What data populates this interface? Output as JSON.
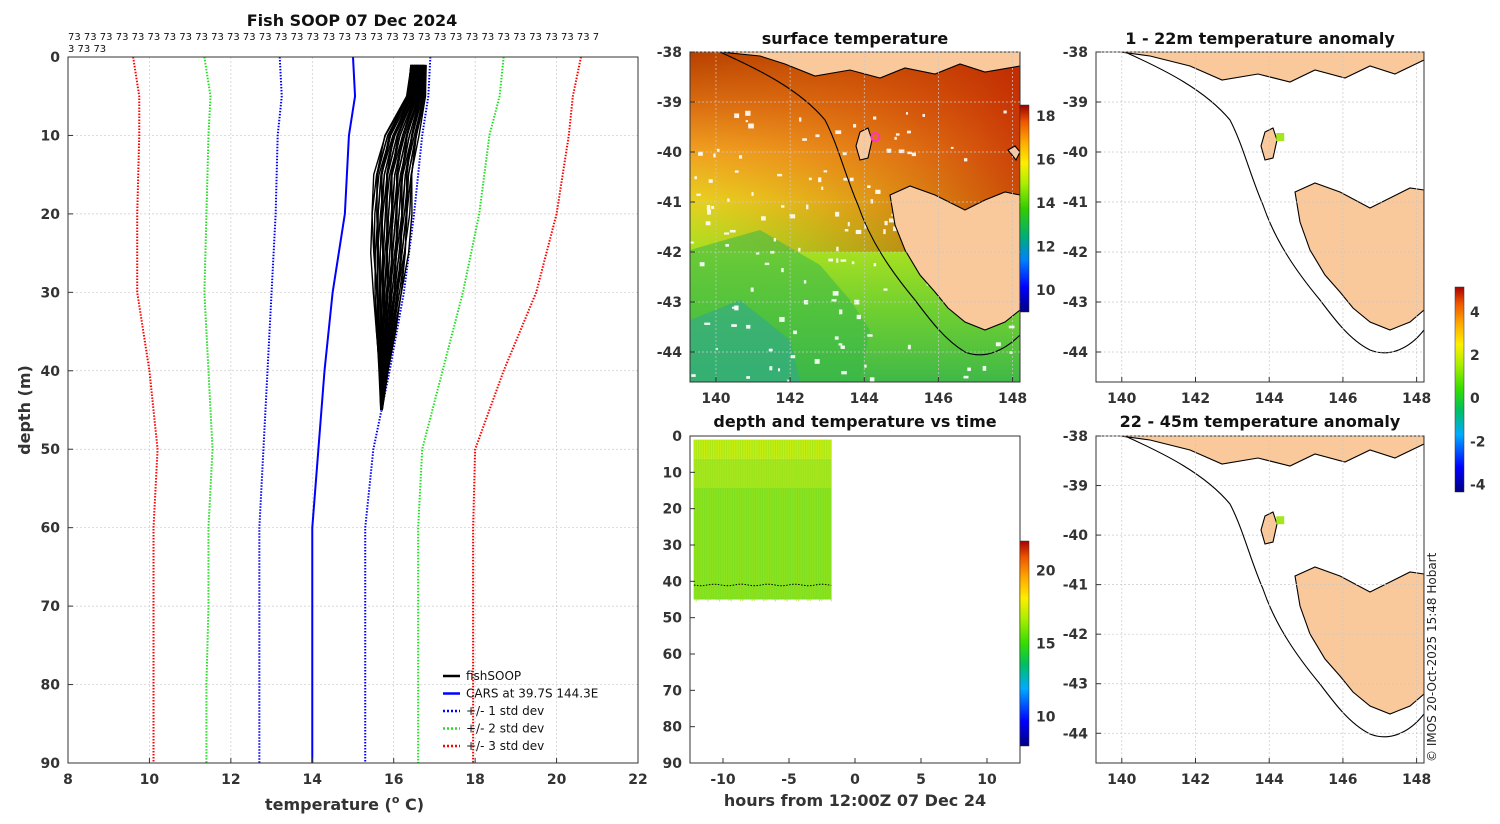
{
  "chart_data": [
    {
      "id": "profile",
      "type": "line",
      "title": "Fish SOOP 07 Dec 2024",
      "top_labels": [
        "73 73 73 73 73 73 73 73 73 73 73 73 73 73 73 73 73 73 73 73 73 73 73 73 73 73 73 73 73 73 73 73 73 7",
        "3 73 73"
      ],
      "xlabel": "temperature (",
      "xlabel_sup": "o",
      "xlabel_unit": " C)",
      "ylabel": "depth (m)",
      "xlim": [
        8,
        22
      ],
      "ylim": [
        0,
        90
      ],
      "xticks": [
        8,
        10,
        12,
        14,
        16,
        18,
        20,
        22
      ],
      "yticks": [
        0,
        10,
        20,
        30,
        40,
        50,
        60,
        70,
        80,
        90
      ],
      "depths": [
        0,
        5,
        10,
        20,
        30,
        40,
        50,
        60,
        70,
        80,
        90
      ],
      "series": [
        {
          "name": "+/- 3 std dev (lower)",
          "color": "#ff0000",
          "style": "dotted",
          "x": [
            9.6,
            9.75,
            9.75,
            9.7,
            9.7,
            10.0,
            10.2,
            10.1,
            10.1,
            10.1,
            10.1
          ]
        },
        {
          "name": "+/- 2 std dev (lower)",
          "color": "#22dd22",
          "style": "dotted",
          "x": [
            11.35,
            11.5,
            11.45,
            11.4,
            11.35,
            11.45,
            11.55,
            11.45,
            11.45,
            11.4,
            11.4
          ]
        },
        {
          "name": "+/- 1 std dev (lower)",
          "color": "#0000ff",
          "style": "dotted",
          "x": [
            13.2,
            13.25,
            13.15,
            13.1,
            13.0,
            12.9,
            12.8,
            12.7,
            12.7,
            12.7,
            12.7
          ]
        },
        {
          "name": "CARS at 39.7S 144.3E",
          "color": "#0000ff",
          "style": "solid",
          "x": [
            15.0,
            15.05,
            14.9,
            14.8,
            14.5,
            14.3,
            14.15,
            14.0,
            14.0,
            14.0,
            14.0
          ]
        },
        {
          "name": "+/- 1 std dev (upper)",
          "color": "#0000ff",
          "style": "dotted",
          "x": [
            16.9,
            16.85,
            16.7,
            16.5,
            16.25,
            15.9,
            15.5,
            15.3,
            15.3,
            15.3,
            15.3
          ]
        },
        {
          "name": "+/- 2 std dev (upper)",
          "color": "#22dd22",
          "style": "dotted",
          "x": [
            18.7,
            18.6,
            18.35,
            18.1,
            17.7,
            17.2,
            16.7,
            16.6,
            16.6,
            16.6,
            16.6
          ]
        },
        {
          "name": "+/- 3 std dev (upper)",
          "color": "#ff0000",
          "style": "dotted",
          "x": [
            20.6,
            20.4,
            20.3,
            20.0,
            19.5,
            18.7,
            18.0,
            17.95,
            17.95,
            17.95,
            17.95
          ]
        }
      ],
      "fishsoop": {
        "depth": [
          1,
          5,
          10,
          15,
          20,
          25,
          30,
          35,
          40,
          45
        ],
        "center": [
          16.6,
          16.55,
          16.2,
          16.0,
          15.95,
          15.9,
          15.85,
          15.8,
          15.75,
          15.7
        ],
        "spread": [
          0.2,
          0.25,
          0.45,
          0.5,
          0.5,
          0.45,
          0.35,
          0.25,
          0.12,
          0.02
        ],
        "color": "#000000"
      },
      "legend": [
        {
          "label": "fishSOOP",
          "color": "#000000",
          "style": "solid"
        },
        {
          "label": "CARS at 39.7S 144.3E",
          "color": "#0000ff",
          "style": "solid"
        },
        {
          "label": "+/- 1 std dev",
          "color": "#0000ff",
          "style": "dotted"
        },
        {
          "label": "+/- 2 std dev",
          "color": "#22dd22",
          "style": "dotted"
        },
        {
          "label": "+/- 3 std dev",
          "color": "#ff0000",
          "style": "dotted"
        }
      ]
    },
    {
      "id": "sst_map",
      "type": "heatmap",
      "title": "surface temperature",
      "xlim": [
        139.3,
        148.2
      ],
      "ylim": [
        -44.6,
        -38
      ],
      "xticks": [
        140,
        142,
        144,
        146,
        148
      ],
      "yticks": [
        -38,
        -39,
        -40,
        -41,
        -42,
        -43,
        -44
      ],
      "colorbar": {
        "min": 9,
        "max": 18.5,
        "ticks": [
          10,
          12,
          14,
          16,
          18
        ]
      },
      "marker": {
        "lon": 144.3,
        "lat": -39.7,
        "color": "#ff33cc"
      }
    },
    {
      "id": "depth_time",
      "type": "scatter",
      "title": "depth and temperature vs time",
      "xlabel": "hours from 12:00Z 07 Dec 24",
      "xlim": [
        -12.5,
        12.5
      ],
      "ylim": [
        0,
        90
      ],
      "xticks": [
        -10,
        -5,
        0,
        5,
        10
      ],
      "yticks": [
        0,
        10,
        20,
        30,
        40,
        50,
        60,
        70,
        80,
        90
      ],
      "time_range": [
        -12.2,
        -1.8
      ],
      "depth_range": [
        1,
        45
      ],
      "bottom_depth": 41,
      "colorbar": {
        "min": 8,
        "max": 22,
        "ticks": [
          10,
          15,
          20
        ]
      }
    },
    {
      "id": "anom_1_22",
      "type": "heatmap",
      "title": "1 - 22m temperature anomaly",
      "xlim": [
        139.3,
        148.2
      ],
      "ylim": [
        -44.6,
        -38
      ],
      "xticks": [
        140,
        142,
        144,
        146,
        148
      ],
      "yticks": [
        -38,
        -39,
        -40,
        -41,
        -42,
        -43,
        -44
      ],
      "marker": {
        "lon": 144.3,
        "lat": -39.7,
        "color": "#a6e61e"
      }
    },
    {
      "id": "anom_22_45",
      "type": "heatmap",
      "title": "22 - 45m temperature anomaly",
      "xlim": [
        139.3,
        148.2
      ],
      "ylim": [
        -44.6,
        -38
      ],
      "xticks": [
        140,
        142,
        144,
        146,
        148
      ],
      "yticks": [
        -38,
        -39,
        -40,
        -41,
        -42,
        -43,
        -44
      ],
      "marker": {
        "lon": 144.3,
        "lat": -39.7,
        "color": "#a6e61e"
      },
      "colorbar": {
        "min": -4.3,
        "max": 5.2,
        "ticks": [
          4,
          2,
          0,
          -2,
          -4
        ]
      }
    }
  ],
  "credit": "© IMOS 20-Oct-2025 15:48 Hobart"
}
